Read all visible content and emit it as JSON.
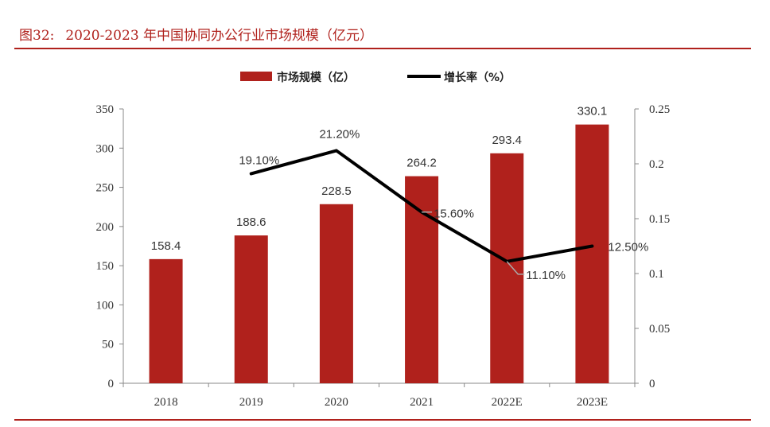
{
  "header": {
    "figure_label": "图32:",
    "title": "2020-2023 年中国协同办公行业市场规模（亿元）"
  },
  "colors": {
    "accent": "#b0211c",
    "bar": "#b0211c",
    "line": "#000000"
  },
  "chart_data": {
    "type": "bar",
    "categories": [
      "2018",
      "2019",
      "2020",
      "2021",
      "2022E",
      "2023E"
    ],
    "series": [
      {
        "name": "市场规模（亿）",
        "type": "bar",
        "axis": "left",
        "values": [
          158.4,
          188.6,
          228.5,
          264.2,
          293.4,
          330.1
        ],
        "labels": [
          "158.4",
          "188.6",
          "228.5",
          "264.2",
          "293.4",
          "330.1"
        ]
      },
      {
        "name": "增长率（%）",
        "type": "line",
        "axis": "right",
        "values": [
          null,
          0.191,
          0.212,
          0.156,
          0.111,
          0.125
        ],
        "labels": [
          "",
          "19.10%",
          "21.20%",
          "15.60%",
          "11.10%",
          "12.50%"
        ]
      }
    ],
    "y_left": {
      "min": 0,
      "max": 350,
      "ticks": [
        "0",
        "50",
        "100",
        "150",
        "200",
        "250",
        "300",
        "350"
      ]
    },
    "y_right": {
      "min": 0,
      "max": 0.25,
      "ticks": [
        "0",
        "0.05",
        "0.1",
        "0.15",
        "0.2",
        "0.25"
      ]
    },
    "legend": "top-center",
    "grid": false
  }
}
